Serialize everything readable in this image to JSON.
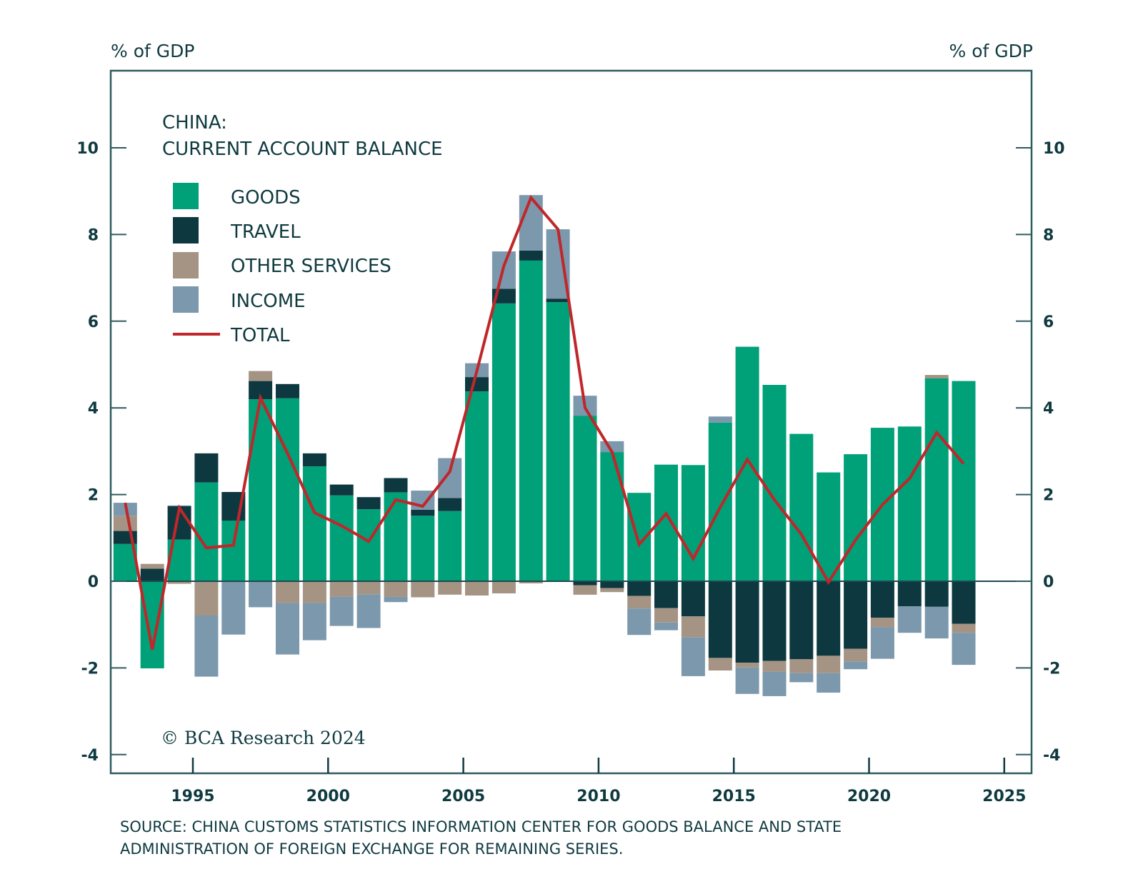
{
  "chart_data": {
    "type": "bar",
    "stacked": true,
    "title": "CHINA:",
    "subtitle": "CURRENT ACCOUNT BALANCE",
    "ylabel_left": "% of GDP",
    "ylabel_right": "% of GDP",
    "xlabel": "",
    "ylim": [
      -4,
      12
    ],
    "xlim": [
      1992,
      2025
    ],
    "yticks": [
      -4,
      -2,
      0,
      2,
      4,
      6,
      8,
      10
    ],
    "xticks": [
      1995,
      2000,
      2005,
      2010,
      2015,
      2020,
      2025
    ],
    "grid": false,
    "legend_position": "top-left",
    "categories": [
      1992,
      1993,
      1994,
      1995,
      1996,
      1997,
      1998,
      1999,
      2000,
      2001,
      2002,
      2003,
      2004,
      2005,
      2006,
      2007,
      2008,
      2009,
      2010,
      2011,
      2012,
      2013,
      2014,
      2015,
      2016,
      2017,
      2018,
      2019,
      2020,
      2021,
      2022,
      2023
    ],
    "series": [
      {
        "name": "GOODS",
        "type": "bar",
        "color": "#00a078",
        "values": [
          0.86,
          -2.01,
          0.96,
          2.28,
          1.4,
          4.2,
          4.22,
          2.65,
          1.98,
          1.66,
          2.05,
          1.51,
          1.62,
          4.38,
          6.41,
          7.4,
          6.44,
          3.82,
          2.98,
          2.04,
          2.69,
          2.68,
          3.66,
          5.41,
          4.53,
          3.4,
          2.51,
          2.93,
          3.54,
          3.57,
          4.68,
          4.62
        ]
      },
      {
        "name": "TRAVEL",
        "type": "bar",
        "color": "#0e3840",
        "values": [
          0.3,
          0.29,
          0.77,
          0.67,
          0.66,
          0.42,
          0.33,
          0.3,
          0.25,
          0.28,
          0.33,
          0.14,
          0.3,
          0.33,
          0.34,
          0.23,
          0.08,
          -0.09,
          -0.16,
          -0.34,
          -0.62,
          -0.81,
          -1.77,
          -1.88,
          -1.84,
          -1.8,
          -1.72,
          -1.56,
          -0.84,
          -0.58,
          -0.59,
          -0.98
        ]
      },
      {
        "name": "OTHER SERVICES",
        "type": "bar",
        "color": "#a59484",
        "values": [
          0.35,
          0.11,
          -0.06,
          -0.79,
          0.0,
          0.23,
          -0.5,
          -0.5,
          -0.36,
          -0.3,
          -0.36,
          -0.37,
          -0.31,
          -0.33,
          -0.28,
          -0.05,
          0.0,
          -0.22,
          -0.09,
          -0.29,
          -0.33,
          -0.48,
          -0.29,
          -0.11,
          -0.25,
          -0.32,
          -0.4,
          -0.29,
          -0.22,
          0.0,
          0.08,
          -0.21
        ]
      },
      {
        "name": "INCOME",
        "type": "bar",
        "color": "#7b98ad",
        "values": [
          0.3,
          0.0,
          0.02,
          -1.41,
          -1.23,
          -0.6,
          -1.19,
          -0.86,
          -0.67,
          -0.78,
          -0.12,
          0.44,
          0.92,
          0.32,
          0.86,
          1.28,
          1.6,
          0.46,
          0.25,
          -0.61,
          -0.18,
          -0.9,
          0.14,
          -0.61,
          -0.56,
          -0.21,
          -0.45,
          -0.18,
          -0.73,
          -0.61,
          -0.73,
          -0.74
        ]
      },
      {
        "name": "TOTAL",
        "type": "line",
        "color": "#c0262a",
        "values": [
          1.81,
          -1.58,
          1.69,
          0.77,
          0.83,
          4.23,
          2.95,
          1.58,
          1.28,
          0.92,
          1.88,
          1.73,
          2.53,
          4.85,
          7.28,
          8.85,
          8.12,
          4.0,
          2.98,
          0.85,
          1.56,
          0.52,
          1.71,
          2.81,
          1.88,
          1.08,
          -0.02,
          0.95,
          1.77,
          2.37,
          3.43,
          2.71
        ]
      }
    ],
    "copyright": "© BCA Research 2024",
    "source_lines": [
      "SOURCE: CHINA CUSTOMS STATISTICS INFORMATION CENTER FOR GOODS BALANCE AND STATE",
      "ADMINISTRATION OF FOREIGN EXCHANGE FOR REMAINING SERIES."
    ]
  },
  "colors": {
    "text": "#0f3a40",
    "frame": "#2f5a5e",
    "zero_line": "#1f4a4e"
  }
}
